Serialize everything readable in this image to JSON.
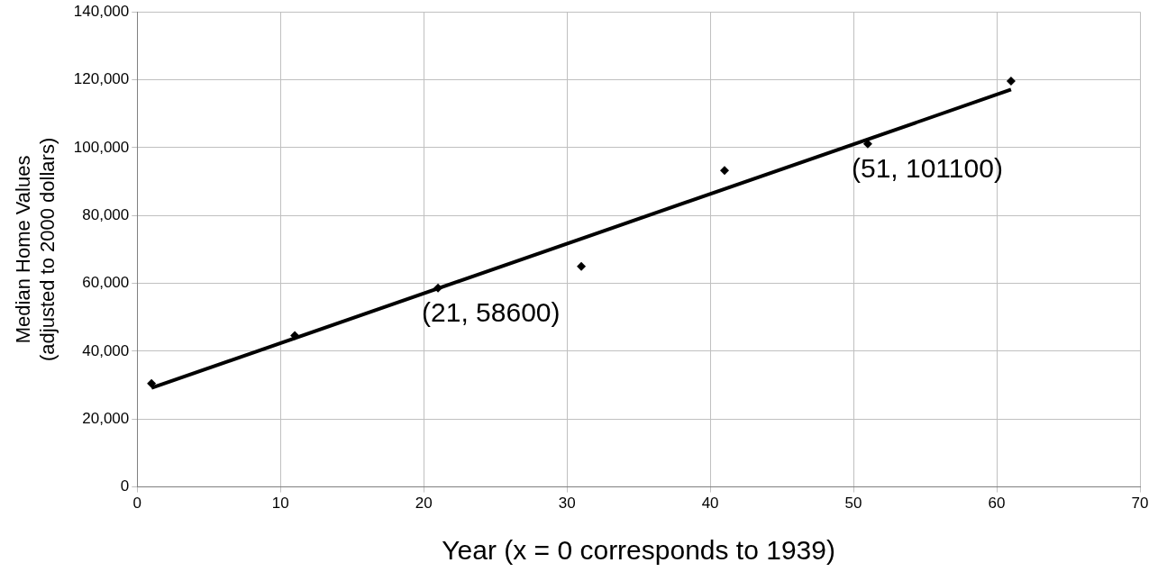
{
  "chart_data": {
    "type": "scatter",
    "xlabel": "Year (x = 0 corresponds to 1939)",
    "ylabel": "Median Home Values (adjusted to 2000 dollars)",
    "x": [
      1,
      11,
      21,
      31,
      41,
      51,
      61
    ],
    "series": [
      {
        "type": "scatter",
        "color": "#000000",
        "marker": "diamond",
        "values": [
          30500,
          44600,
          58600,
          65000,
          93300,
          101100,
          119600
        ]
      },
      {
        "type": "line",
        "color": "#000000",
        "marker": "none",
        "line_style": "solid",
        "x": [
          1,
          61
        ],
        "values": [
          29200,
          117100
        ]
      }
    ],
    "xlim": [
      0,
      70
    ],
    "xticks": [
      0,
      10,
      20,
      30,
      40,
      50,
      60,
      70
    ],
    "ylim": [
      0,
      140000
    ],
    "yticks": [
      0,
      {
        "value": 20000,
        "label": "20,000"
      },
      {
        "value": 40000,
        "label": "40,000"
      },
      {
        "value": 60000,
        "label": "60,000"
      },
      {
        "value": 80000,
        "label": "80,000"
      },
      {
        "value": 100000,
        "label": "100,000"
      },
      {
        "value": 120000,
        "label": "120,000"
      },
      {
        "value": 140000,
        "label": "140,000"
      }
    ],
    "grid": true,
    "legend": false,
    "annotations": [
      {
        "text": "(21, 58600)",
        "x": 21,
        "y": 58600
      },
      {
        "text": "(51, 101100)",
        "x": 51,
        "y": 101100
      }
    ]
  }
}
